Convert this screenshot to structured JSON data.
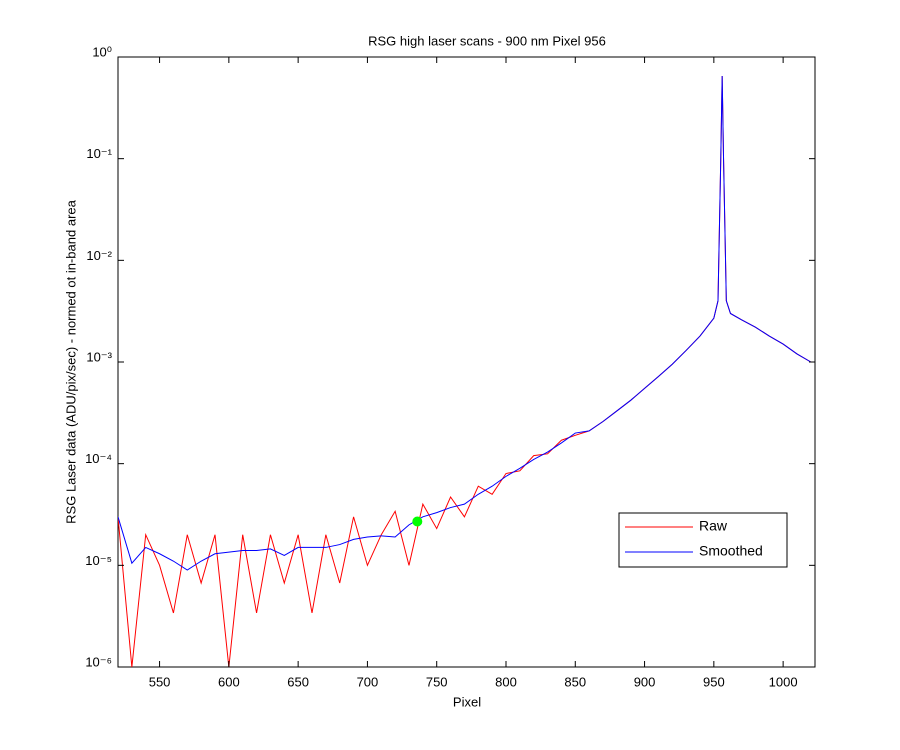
{
  "chart_data": {
    "type": "line",
    "title": "RSG high laser scans  - 900 nm    Pixel 956",
    "x_label": "Pixel",
    "y_label": "RSG Laser data (ADU/pix/sec) - normed ot in-band area",
    "x": [
      520,
      530,
      540,
      550,
      560,
      570,
      580,
      590,
      600,
      610,
      620,
      630,
      640,
      650,
      660,
      670,
      680,
      690,
      700,
      710,
      720,
      730,
      740,
      750,
      760,
      770,
      780,
      790,
      800,
      810,
      820,
      830,
      840,
      850,
      860,
      870,
      880,
      890,
      900,
      910,
      920,
      930,
      940,
      950,
      953,
      955,
      956,
      957,
      959,
      962,
      970,
      980,
      990,
      1000,
      1010,
      1020
    ],
    "series": [
      {
        "name": "Raw",
        "color": "#ff0000",
        "values": [
          3e-05,
          1e-06,
          2e-05,
          1e-05,
          3.4e-06,
          2e-05,
          6.7e-06,
          2e-05,
          1e-06,
          2e-05,
          3.4e-06,
          2e-05,
          6.7e-06,
          2e-05,
          3.4e-06,
          2e-05,
          6.7e-06,
          3e-05,
          1e-05,
          2e-05,
          3.4e-05,
          1e-05,
          4e-05,
          2.3e-05,
          4.7e-05,
          3e-05,
          6e-05,
          5e-05,
          8e-05,
          8.5e-05,
          0.00012,
          0.000125,
          0.00017,
          0.00019,
          0.00021,
          0.00026,
          0.00033,
          0.00042,
          0.00055,
          0.00072,
          0.00095,
          0.0013,
          0.0018,
          0.0027,
          0.004,
          0.1,
          0.65,
          0.1,
          0.004,
          0.003,
          0.0026,
          0.0022,
          0.0018,
          0.0015,
          0.0012,
          0.001
        ]
      },
      {
        "name": "Smoothed",
        "color": "#0000ff",
        "values": [
          3e-05,
          1.05e-05,
          1.5e-05,
          1.3e-05,
          1.1e-05,
          9e-06,
          1.1e-05,
          1.3e-05,
          1.35e-05,
          1.4e-05,
          1.4e-05,
          1.45e-05,
          1.25e-05,
          1.5e-05,
          1.5e-05,
          1.5e-05,
          1.6e-05,
          1.8e-05,
          1.9e-05,
          1.95e-05,
          1.9e-05,
          2.5e-05,
          3e-05,
          3.3e-05,
          3.7e-05,
          4e-05,
          5e-05,
          6e-05,
          7.5e-05,
          9e-05,
          0.00011,
          0.00013,
          0.00016,
          0.0002,
          0.00021,
          0.00026,
          0.00033,
          0.00042,
          0.00055,
          0.00072,
          0.00095,
          0.0013,
          0.0018,
          0.0027,
          0.004,
          0.1,
          0.65,
          0.1,
          0.004,
          0.003,
          0.0026,
          0.0022,
          0.0018,
          0.0015,
          0.0012,
          0.001
        ]
      }
    ],
    "marker": {
      "x": 736,
      "y": 2.7e-05,
      "color": "#00ff00"
    },
    "xlim": [
      520,
      1023
    ],
    "xticks": [
      550,
      600,
      650,
      700,
      750,
      800,
      850,
      900,
      950,
      1000
    ],
    "ylim": [
      1e-06,
      1
    ],
    "yscale": "log",
    "yticks": [
      {
        "value": 1e-06,
        "label": "10⁻⁶"
      },
      {
        "value": 1e-05,
        "label": "10⁻⁵"
      },
      {
        "value": 0.0001,
        "label": "10⁻⁴"
      },
      {
        "value": 0.001,
        "label": "10⁻³"
      },
      {
        "value": 0.01,
        "label": "10⁻²"
      },
      {
        "value": 0.1,
        "label": "10⁻¹"
      },
      {
        "value": 1,
        "label": "10⁰"
      }
    ],
    "legend": "lower right"
  }
}
